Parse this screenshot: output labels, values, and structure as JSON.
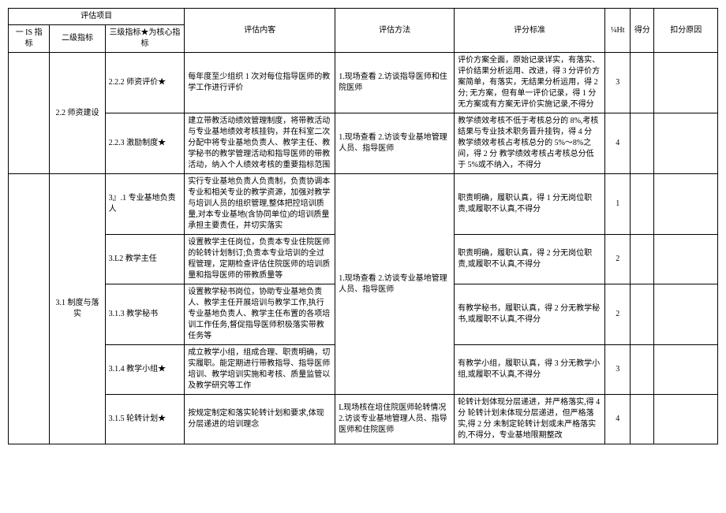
{
  "header": {
    "eval_item_group": "评估项目",
    "lvl1": "一 IS 指标",
    "lvl2": "二级指标",
    "lvl3": "三级指标★为核心指标",
    "content": "评估内客",
    "method": "评估方法",
    "criteria": "评分标准",
    "weight": "¼Ht",
    "score": "得分",
    "deduct": "扣分原因"
  },
  "section1": {
    "lvl2": "2.2 师资建设",
    "row_222": {
      "lvl3": "2.2.2 师资评价★",
      "content": "每年度至少组织 1 次对每位指导医师的教学工作进行评价",
      "method": "1.现场查看\n2.访谈指导医师和住院医师",
      "criteria": "评价方案全面，原始记录详实，有落实、评价结果分析运用、改进，得 3 分评价方案简单，有落实，无结果分析运用，得 2 分;\n无方案，但有单一评价记录，得 1 分无方案或有方案无评价实施记录,不得分",
      "weight": "3"
    },
    "row_223": {
      "lvl3": "2.2.3 激励制度★",
      "content": "建立带教活动绩效管理制度，将带教活动与专业基地绩效考核挂钩，并在科室二次分配中将专业基地负责人、教学主任、教学秘书的教学管理活动和指导医师的带教活动，纳入个人绩效考核的重要指标范围",
      "method": "1.现场查看\n2.访谈专业基地管理人员、指导医师",
      "criteria": "教学绩效考核不低于考核总分的 8%,考核结果与专业技术职务晋升挂钩，得 4 分\n教学绩效考核占考核总分的 5%～8%之间，得 2 分\n教学绩效考核占考核总分低于 5%或不纳入，不得分",
      "weight": "4"
    }
  },
  "section2": {
    "lvl2": "3.1 制度与落实",
    "method_group": "1.现场查看\n2.访谈专业基地管理人员、指导医师",
    "row_311": {
      "lvl3": "3』.1 专业基地负责人",
      "content": "实行专业基地负责人负责制，负责协调本专业和相关专业的教学资源，加强对教学与培训人员的组织管理,整体把控培训质量,对本专业基地(含协同单位)的培训质量承担主要责任，并切实落实",
      "criteria": "职责明确，履职认真，得 1 分无岗位职责,或履职不认真,不得分",
      "weight": "1"
    },
    "row_312": {
      "lvl3": "3.L2 教学主任",
      "content": "设置教学主任岗位，负责本专业住院医师的轮转计划制订;负责本专业培训的全过程管理，定期检查评估住院医师的培训质量和指导医师的带教质量等",
      "criteria": "职责明确，履职认真，得 2 分无岗位职责,或履职不认真,不得分",
      "weight": "2"
    },
    "row_313": {
      "lvl3": "3.1.3 教学秘书",
      "content": "设置教学秘书岗位，协助专业基地负责人、教学主任开展培训与教学工作,执行专业基地负责人、教学主任布置的各项培训工作任务,督促指导医师积极落实带教任务等",
      "criteria": "有教学秘书，履职认真，得 2 分无教学秘书,或履职不认真,不得分",
      "weight": "2"
    },
    "row_314": {
      "lvl3": "3.1.4 教学小组★",
      "content": "成立教学小组，组成合理、职责明确，切实履职。能定期进行带教指导、指导医师培训、教学培训实施和考核、质量监管以及教学研究等工作",
      "criteria": "有教学小组，履职认真，得 3 分无教学小组,或履职不认真,不得分",
      "weight": "3"
    },
    "row_315": {
      "lvl3": "3.1.5 轮转计划★",
      "content": "按规定制定和落实轮转计划和要求,体现分层递进的培训理念",
      "method": "L现场核在培住院医师轮转情况 2.访谈专业基地管理人员、指导医师和住院医师",
      "criteria": "轮转计划体现分层递进，并严格落实,得 4 分\n轮转计划未体现分层递进，但严格落实,得 2 分\n未制定轮转计划或未严格落实的,不得分，专业基地限期整改",
      "weight": "4"
    }
  }
}
